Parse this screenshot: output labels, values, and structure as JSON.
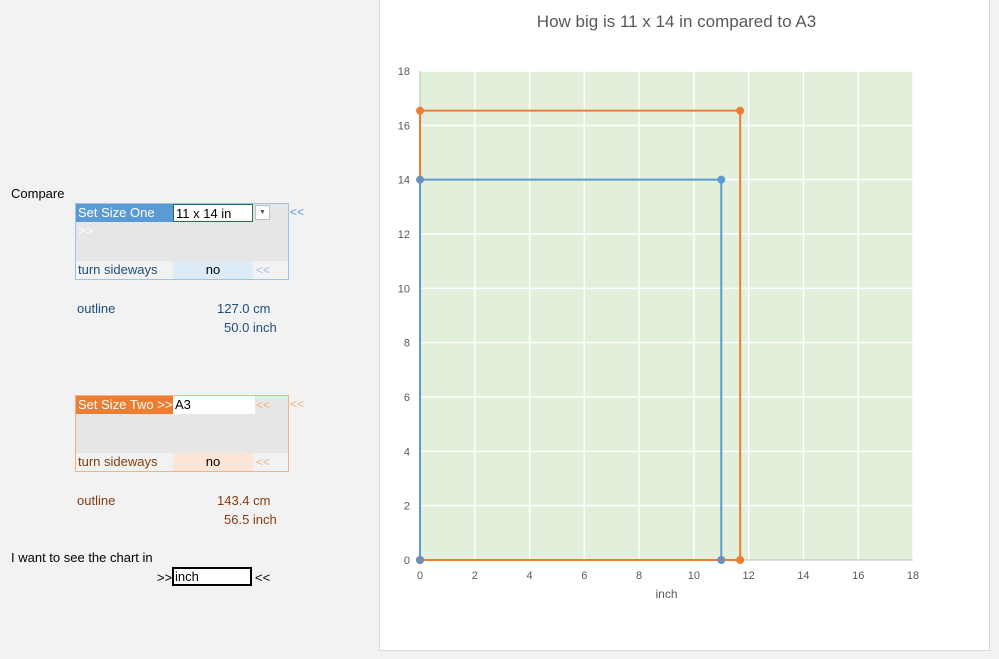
{
  "left_panel": {
    "compare_label": "Compare",
    "size_one": {
      "header_label": "Set Size One >>",
      "value": "11 x 14 in",
      "dropdown_icon": "chevron-down-icon",
      "outer_arrow": "<<",
      "sideways_label": "turn sideways",
      "sideways_value": "no",
      "sideways_arrow": "<<",
      "outline_label": "outline",
      "outline_cm": "127.0 cm",
      "outline_inch": "50.0 inch",
      "accent_color": "#5b9bd5"
    },
    "size_two": {
      "header_label": "Set Size Two >>",
      "value": "A3",
      "inner_arrow": "<<",
      "outer_arrow": "<<",
      "sideways_label": "turn sideways",
      "sideways_value": "no",
      "sideways_arrow": "<<",
      "outline_label": "outline",
      "outline_cm": "143.4 cm",
      "outline_inch": "56.5 inch",
      "accent_color": "#ed7d31"
    },
    "unit_prompt": "I want to see the chart in",
    "unit_prefix": ">>",
    "unit_value": "inch",
    "unit_suffix": "<<"
  },
  "chart_data": {
    "type": "scatter",
    "title": "How big is 11 x 14 in compared to A3",
    "xlabel": "inch",
    "ylabel": "",
    "xlim": [
      0,
      18
    ],
    "ylim": [
      0,
      18
    ],
    "x_ticks": [
      "0",
      "2",
      "4",
      "6",
      "8",
      "10",
      "12",
      "14",
      "16",
      "18"
    ],
    "y_ticks": [
      "0",
      "2",
      "4",
      "6",
      "8",
      "10",
      "12",
      "14",
      "16",
      "18"
    ],
    "grid": true,
    "plot_background": "#e2efda",
    "series": [
      {
        "name": "11 x 14 in",
        "color": "#5b9bd5",
        "points": [
          [
            0,
            0
          ],
          [
            0,
            14
          ],
          [
            11,
            14
          ],
          [
            11,
            0
          ]
        ]
      },
      {
        "name": "A3",
        "color": "#ed7d31",
        "points": [
          [
            0,
            0
          ],
          [
            0,
            16.54
          ],
          [
            11.69,
            16.54
          ],
          [
            11.69,
            0
          ],
          [
            0,
            0
          ]
        ]
      }
    ]
  }
}
